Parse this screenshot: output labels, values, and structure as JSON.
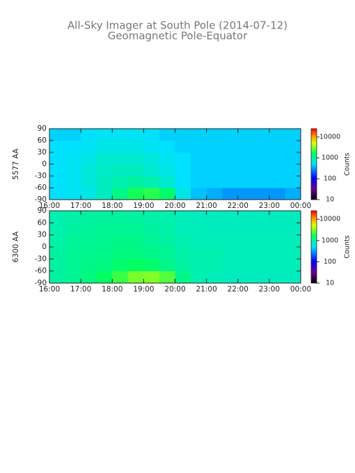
{
  "title": "All-Sky Imager at South Pole (2014-07-12)",
  "subtitle": "Geomagnetic Pole-Equator",
  "chart_data": [
    {
      "type": "heatmap",
      "ylabel": "5577 AA",
      "x_bins": [
        16,
        16.5,
        17,
        17.5,
        18,
        18.5,
        19,
        19.5,
        20,
        20.5,
        21,
        21.5,
        22,
        22.5,
        23,
        23.5,
        24
      ],
      "y_bins": [
        -90,
        -60,
        -30,
        0,
        30,
        60,
        90
      ],
      "z": [
        [
          500,
          550,
          600,
          800,
          1200,
          1800,
          2000,
          1500,
          600,
          400,
          350,
          300,
          300,
          300,
          300,
          350
        ],
        [
          500,
          550,
          650,
          800,
          900,
          1000,
          900,
          700,
          500,
          450,
          450,
          450,
          450,
          450,
          450,
          450
        ],
        [
          500,
          550,
          650,
          750,
          800,
          800,
          700,
          600,
          500,
          450,
          450,
          450,
          450,
          450,
          450,
          450
        ],
        [
          500,
          550,
          600,
          700,
          700,
          700,
          650,
          550,
          500,
          450,
          450,
          450,
          450,
          450,
          450,
          450
        ],
        [
          500,
          500,
          550,
          600,
          600,
          600,
          550,
          500,
          450,
          450,
          450,
          450,
          450,
          450,
          450,
          450
        ],
        [
          450,
          450,
          500,
          550,
          550,
          550,
          500,
          450,
          450,
          450,
          450,
          450,
          450,
          450,
          450,
          450
        ]
      ],
      "xlim": [
        16,
        24
      ],
      "xticks": [
        {
          "value": 16,
          "label": "16:00"
        },
        {
          "value": 17,
          "label": "17:00"
        },
        {
          "value": 18,
          "label": "18:00"
        },
        {
          "value": 19,
          "label": "19:00"
        },
        {
          "value": 20,
          "label": "20:00"
        },
        {
          "value": 21,
          "label": "21:00"
        },
        {
          "value": 22,
          "label": "22:00"
        },
        {
          "value": 23,
          "label": "23:00"
        },
        {
          "value": 24,
          "label": "00:00"
        }
      ],
      "ylim": [
        -90,
        90
      ],
      "yticks": [
        90,
        60,
        30,
        0,
        -30,
        -60,
        -90
      ],
      "colorbar": {
        "label": "Counts",
        "log": true,
        "clim": [
          10,
          25000
        ],
        "ticks": [
          10,
          100,
          1000,
          10000
        ]
      }
    },
    {
      "type": "heatmap",
      "ylabel": "6300 AA",
      "x_bins": [
        16,
        16.5,
        17,
        17.5,
        18,
        18.5,
        19,
        19.5,
        20,
        20.5,
        21,
        21.5,
        22,
        22.5,
        23,
        23.5,
        24
      ],
      "y_bins": [
        -90,
        -60,
        -30,
        0,
        30,
        60,
        90
      ],
      "z": [
        [
          1000,
          1100,
          1300,
          1600,
          2200,
          3000,
          3200,
          2500,
          1200,
          900,
          850,
          800,
          800,
          800,
          800,
          800
        ],
        [
          1000,
          1100,
          1200,
          1300,
          1500,
          1600,
          1500,
          1200,
          1000,
          900,
          900,
          850,
          850,
          850,
          850,
          850
        ],
        [
          1000,
          1100,
          1150,
          1200,
          1300,
          1300,
          1200,
          1100,
          950,
          900,
          900,
          850,
          850,
          850,
          850,
          850
        ],
        [
          950,
          1050,
          1100,
          1150,
          1200,
          1200,
          1100,
          1000,
          900,
          850,
          850,
          850,
          850,
          850,
          850,
          850
        ],
        [
          900,
          1000,
          1050,
          1100,
          1100,
          1100,
          1000,
          950,
          850,
          850,
          800,
          800,
          800,
          800,
          800,
          800
        ],
        [
          900,
          950,
          1000,
          1000,
          1000,
          1000,
          950,
          900,
          850,
          800,
          800,
          800,
          800,
          800,
          800,
          800
        ]
      ],
      "xlim": [
        16,
        24
      ],
      "xticks": [
        {
          "value": 16,
          "label": "16:00"
        },
        {
          "value": 17,
          "label": "17:00"
        },
        {
          "value": 18,
          "label": "18:00"
        },
        {
          "value": 19,
          "label": "19:00"
        },
        {
          "value": 20,
          "label": "20:00"
        },
        {
          "value": 21,
          "label": "21:00"
        },
        {
          "value": 22,
          "label": "22:00"
        },
        {
          "value": 23,
          "label": "23:00"
        },
        {
          "value": 24,
          "label": "00:00"
        }
      ],
      "ylim": [
        -90,
        90
      ],
      "yticks": [
        90,
        60,
        30,
        0,
        -30,
        -60,
        -90
      ],
      "colorbar": {
        "label": "Counts",
        "log": true,
        "clim": [
          10,
          25000
        ],
        "ticks": [
          10,
          100,
          1000,
          10000
        ]
      }
    }
  ]
}
